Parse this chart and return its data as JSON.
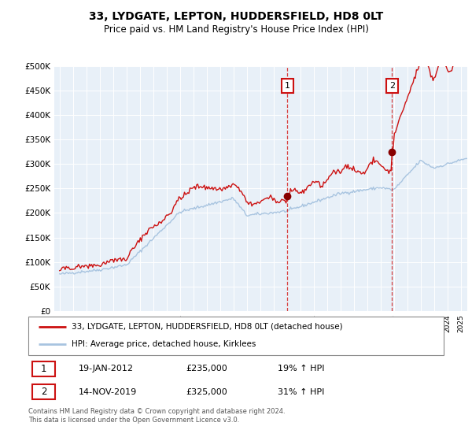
{
  "title": "33, LYDGATE, LEPTON, HUDDERSFIELD, HD8 0LT",
  "subtitle": "Price paid vs. HM Land Registry's House Price Index (HPI)",
  "red_label": "33, LYDGATE, LEPTON, HUDDERSFIELD, HD8 0LT (detached house)",
  "blue_label": "HPI: Average price, detached house, Kirklees",
  "sale1_date": "19-JAN-2012",
  "sale1_price": 235000,
  "sale1_pct": "19%",
  "sale1_num": "1",
  "sale2_date": "14-NOV-2019",
  "sale2_price": 325000,
  "sale2_pct": "31%",
  "sale2_num": "2",
  "footnote1": "Contains HM Land Registry data © Crown copyright and database right 2024.",
  "footnote2": "This data is licensed under the Open Government Licence v3.0.",
  "bg_color": "#e8f0f8",
  "ylim_min": 0,
  "ylim_max": 500000,
  "sale1_x": 2012.05,
  "sale2_x": 2019.87
}
